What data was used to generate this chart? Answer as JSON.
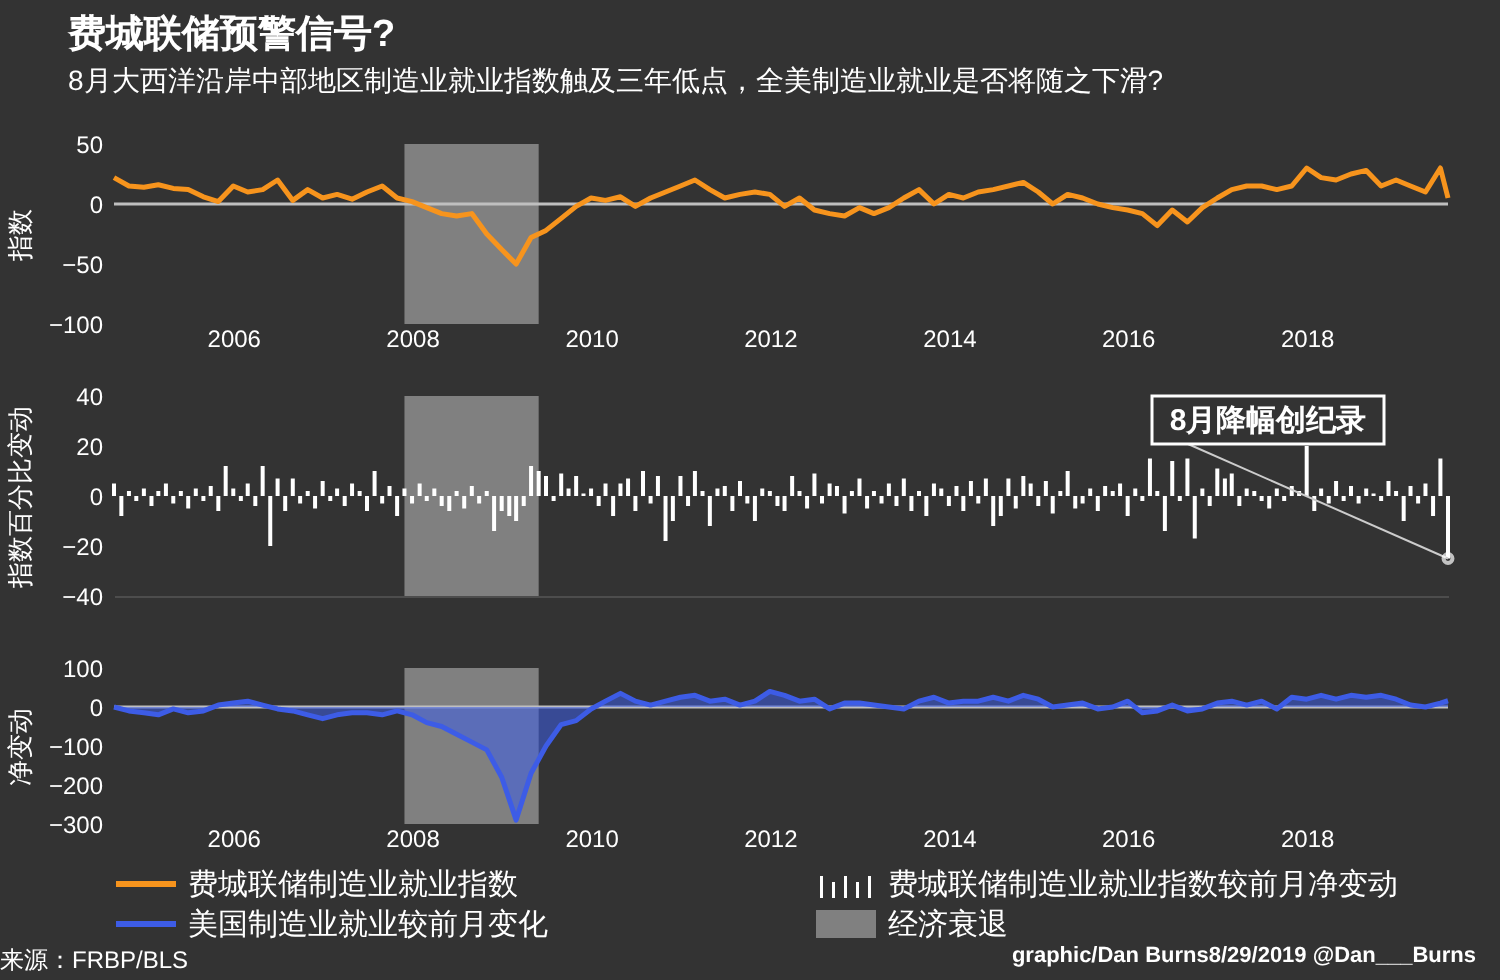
{
  "chart_data": [
    {
      "type": "line",
      "title": "费城联储预警信号?",
      "subtitle": "8月大西洋沿岸中部地区制造业就业指数触及三年低点，全美制造业就业是否将随之下滑?",
      "ylabel": "指数",
      "legend": "bottom",
      "x": [
        "2004-09",
        "2004-11",
        "2005-01",
        "2005-03",
        "2005-05",
        "2005-07",
        "2005-09",
        "2005-11",
        "2006-01",
        "2006-03",
        "2006-05",
        "2006-07",
        "2006-09",
        "2006-11",
        "2007-01",
        "2007-03",
        "2007-05",
        "2007-07",
        "2007-09",
        "2007-11",
        "2008-01",
        "2008-03",
        "2008-05",
        "2008-07",
        "2008-09",
        "2008-11",
        "2009-01",
        "2009-03",
        "2009-05",
        "2009-07",
        "2009-09",
        "2009-11",
        "2010-01",
        "2010-03",
        "2010-05",
        "2010-07",
        "2010-09",
        "2010-11",
        "2011-01",
        "2011-03",
        "2011-05",
        "2011-07",
        "2011-09",
        "2011-11",
        "2012-01",
        "2012-03",
        "2012-05",
        "2012-07",
        "2012-09",
        "2012-11",
        "2013-01",
        "2013-03",
        "2013-05",
        "2013-07",
        "2013-09",
        "2013-11",
        "2014-01",
        "2014-03",
        "2014-05",
        "2014-07",
        "2014-09",
        "2014-11",
        "2015-01",
        "2015-03",
        "2015-05",
        "2015-07",
        "2015-09",
        "2015-11",
        "2016-01",
        "2016-03",
        "2016-05",
        "2016-07",
        "2016-09",
        "2016-11",
        "2017-01",
        "2017-03",
        "2017-05",
        "2017-07",
        "2017-09",
        "2017-11",
        "2018-01",
        "2018-03",
        "2018-05",
        "2018-07",
        "2018-09",
        "2018-11",
        "2019-01",
        "2019-03",
        "2019-05",
        "2019-07",
        "2019-08"
      ],
      "series": [
        {
          "name": "费城联储制造业就业指数",
          "color": "#f7941d",
          "values": [
            22,
            15,
            14,
            16,
            13,
            12,
            6,
            2,
            15,
            10,
            12,
            20,
            3,
            12,
            5,
            8,
            4,
            10,
            15,
            5,
            2,
            -3,
            -8,
            -10,
            -8,
            -25,
            -38,
            -50,
            -28,
            -22,
            -12,
            -2,
            5,
            3,
            6,
            -2,
            5,
            10,
            15,
            20,
            12,
            5,
            8,
            10,
            8,
            -2,
            5,
            -5,
            -8,
            -10,
            -3,
            -8,
            -3,
            5,
            12,
            0,
            8,
            5,
            10,
            12,
            15,
            18,
            10,
            0,
            8,
            5,
            0,
            -3,
            -5,
            -8,
            -18,
            -5,
            -15,
            -3,
            5,
            12,
            15,
            15,
            12,
            15,
            30,
            22,
            20,
            25,
            28,
            15,
            20,
            15,
            10,
            30,
            5
          ]
        }
      ],
      "xlim": [
        "2004-09",
        "2019-08"
      ],
      "xticks": [
        "2006",
        "2008",
        "2010",
        "2012",
        "2014",
        "2016",
        "2018"
      ],
      "ylim": [
        -100,
        50
      ],
      "yticks": [
        -100,
        -50,
        0,
        50
      ],
      "ref_lines": [
        {
          "axis": "y",
          "value": 0,
          "color": "#bfbfbf"
        }
      ],
      "bands": [
        {
          "axis": "x",
          "from": "2007-12",
          "to": "2009-06",
          "label": "经济衰退",
          "color": "#808080"
        }
      ]
    },
    {
      "type": "bar",
      "ylabel": "指数百分比变动",
      "legend": "bottom",
      "tick_labels": "y",
      "x": [
        "2004-09",
        "2004-10",
        "2004-11",
        "2004-12",
        "2005-01",
        "2005-02",
        "2005-03",
        "2005-04",
        "2005-05",
        "2005-06",
        "2005-07",
        "2005-08",
        "2005-09",
        "2005-10",
        "2005-11",
        "2005-12",
        "2006-01",
        "2006-02",
        "2006-03",
        "2006-04",
        "2006-05",
        "2006-06",
        "2006-07",
        "2006-08",
        "2006-09",
        "2006-10",
        "2006-11",
        "2006-12",
        "2007-01",
        "2007-02",
        "2007-03",
        "2007-04",
        "2007-05",
        "2007-06",
        "2007-07",
        "2007-08",
        "2007-09",
        "2007-10",
        "2007-11",
        "2007-12",
        "2008-01",
        "2008-02",
        "2008-03",
        "2008-04",
        "2008-05",
        "2008-06",
        "2008-07",
        "2008-08",
        "2008-09",
        "2008-10",
        "2008-11",
        "2008-12",
        "2009-01",
        "2009-02",
        "2009-03",
        "2009-04",
        "2009-05",
        "2009-06",
        "2009-07",
        "2009-08",
        "2009-09",
        "2009-10",
        "2009-11",
        "2009-12",
        "2010-01",
        "2010-02",
        "2010-03",
        "2010-04",
        "2010-05",
        "2010-06",
        "2010-07",
        "2010-08",
        "2010-09",
        "2010-10",
        "2010-11",
        "2010-12",
        "2011-01",
        "2011-02",
        "2011-03",
        "2011-04",
        "2011-05",
        "2011-06",
        "2011-07",
        "2011-08",
        "2011-09",
        "2011-10",
        "2011-11",
        "2011-12",
        "2012-01",
        "2012-02",
        "2012-03",
        "2012-04",
        "2012-05",
        "2012-06",
        "2012-07",
        "2012-08",
        "2012-09",
        "2012-10",
        "2012-11",
        "2012-12",
        "2013-01",
        "2013-02",
        "2013-03",
        "2013-04",
        "2013-05",
        "2013-06",
        "2013-07",
        "2013-08",
        "2013-09",
        "2013-10",
        "2013-11",
        "2013-12",
        "2014-01",
        "2014-02",
        "2014-03",
        "2014-04",
        "2014-05",
        "2014-06",
        "2014-07",
        "2014-08",
        "2014-09",
        "2014-10",
        "2014-11",
        "2014-12",
        "2015-01",
        "2015-02",
        "2015-03",
        "2015-04",
        "2015-05",
        "2015-06",
        "2015-07",
        "2015-08",
        "2015-09",
        "2015-10",
        "2015-11",
        "2015-12",
        "2016-01",
        "2016-02",
        "2016-03",
        "2016-04",
        "2016-05",
        "2016-06",
        "2016-07",
        "2016-08",
        "2016-09",
        "2016-10",
        "2016-11",
        "2016-12",
        "2017-01",
        "2017-02",
        "2017-03",
        "2017-04",
        "2017-05",
        "2017-06",
        "2017-07",
        "2017-08",
        "2017-09",
        "2017-10",
        "2017-11",
        "2017-12",
        "2018-01",
        "2018-02",
        "2018-03",
        "2018-04",
        "2018-05",
        "2018-06",
        "2018-07",
        "2018-08",
        "2018-09",
        "2018-10",
        "2018-11",
        "2018-12",
        "2019-01",
        "2019-02",
        "2019-03",
        "2019-04",
        "2019-05",
        "2019-06",
        "2019-07",
        "2019-08"
      ],
      "series": [
        {
          "name": "费城联储制造业就业指数较前月净变动",
          "color": "#ffffff",
          "values": [
            5,
            -8,
            2,
            -2,
            3,
            -4,
            2,
            5,
            -3,
            2,
            -5,
            3,
            -2,
            4,
            -6,
            12,
            3,
            -2,
            5,
            -4,
            12,
            -20,
            7,
            -6,
            7,
            -3,
            2,
            -5,
            6,
            -2,
            3,
            -4,
            5,
            2,
            -6,
            10,
            -3,
            4,
            -8,
            3,
            -3,
            5,
            -2,
            3,
            -4,
            -6,
            2,
            -5,
            4,
            -3,
            2,
            -14,
            -6,
            -8,
            -10,
            -4,
            12,
            10,
            8,
            -2,
            9,
            3,
            8,
            1,
            3,
            -4,
            5,
            -8,
            5,
            7,
            -6,
            10,
            -3,
            8,
            -18,
            -10,
            8,
            -4,
            10,
            2,
            -12,
            3,
            4,
            -6,
            6,
            -3,
            -10,
            3,
            2,
            -4,
            -6,
            8,
            2,
            -5,
            9,
            -3,
            5,
            4,
            -7,
            2,
            7,
            -5,
            2,
            -3,
            5,
            -4,
            7,
            -6,
            2,
            -8,
            5,
            3,
            -4,
            4,
            -6,
            6,
            -3,
            7,
            -12,
            -8,
            7,
            -5,
            8,
            5,
            -4,
            6,
            -7,
            2,
            10,
            -5,
            -3,
            3,
            -6,
            4,
            2,
            5,
            -8,
            3,
            -2,
            15,
            2,
            -14,
            14,
            -2,
            15,
            -17,
            3,
            -4,
            11,
            7,
            9,
            -4,
            3,
            2,
            -2,
            -5,
            3,
            -2,
            4,
            2,
            20,
            -6,
            3,
            -3,
            6,
            -2,
            4,
            -3,
            3,
            1,
            -2,
            6,
            2,
            -10,
            4,
            -3,
            5,
            -8,
            15,
            -25
          ]
        }
      ],
      "xlim": [
        "2004-09",
        "2019-08"
      ],
      "xticks": [
        "2006",
        "2008",
        "2010",
        "2012",
        "2014",
        "2016",
        "2018"
      ],
      "ylim": [
        -40,
        40
      ],
      "yticks": [
        -40,
        -20,
        0,
        20,
        40
      ],
      "bands": [
        {
          "axis": "x",
          "from": "2007-12",
          "to": "2009-06",
          "color": "#808080"
        }
      ],
      "annotations": [
        {
          "text": "8月降幅创纪录",
          "x": "2019-08",
          "y": -25
        }
      ]
    },
    {
      "type": "area",
      "ylabel": "净变动",
      "legend": "bottom",
      "x": [
        "2004-09",
        "2004-11",
        "2005-01",
        "2005-03",
        "2005-05",
        "2005-07",
        "2005-09",
        "2005-11",
        "2006-01",
        "2006-03",
        "2006-05",
        "2006-07",
        "2006-09",
        "2006-11",
        "2007-01",
        "2007-03",
        "2007-05",
        "2007-07",
        "2007-09",
        "2007-11",
        "2008-01",
        "2008-03",
        "2008-05",
        "2008-07",
        "2008-09",
        "2008-11",
        "2009-01",
        "2009-03",
        "2009-05",
        "2009-07",
        "2009-09",
        "2009-11",
        "2010-01",
        "2010-03",
        "2010-05",
        "2010-07",
        "2010-09",
        "2010-11",
        "2011-01",
        "2011-03",
        "2011-05",
        "2011-07",
        "2011-09",
        "2011-11",
        "2012-01",
        "2012-03",
        "2012-05",
        "2012-07",
        "2012-09",
        "2012-11",
        "2013-01",
        "2013-03",
        "2013-05",
        "2013-07",
        "2013-09",
        "2013-11",
        "2014-01",
        "2014-03",
        "2014-05",
        "2014-07",
        "2014-09",
        "2014-11",
        "2015-01",
        "2015-03",
        "2015-05",
        "2015-07",
        "2015-09",
        "2015-11",
        "2016-01",
        "2016-03",
        "2016-05",
        "2016-07",
        "2016-09",
        "2016-11",
        "2017-01",
        "2017-03",
        "2017-05",
        "2017-07",
        "2017-09",
        "2017-11",
        "2018-01",
        "2018-03",
        "2018-05",
        "2018-07",
        "2018-09",
        "2018-11",
        "2019-01",
        "2019-03",
        "2019-05",
        "2019-07",
        "2019-08"
      ],
      "series": [
        {
          "name": "美国制造业就业较前月变化",
          "color": "#3d5ce6",
          "values": [
            0,
            -10,
            -15,
            -20,
            -5,
            -15,
            -10,
            5,
            10,
            15,
            5,
            -5,
            -10,
            -20,
            -30,
            -20,
            -15,
            -15,
            -20,
            -10,
            -20,
            -40,
            -50,
            -70,
            -90,
            -110,
            -180,
            -290,
            -170,
            -100,
            -45,
            -35,
            -5,
            15,
            35,
            15,
            5,
            15,
            25,
            30,
            15,
            20,
            5,
            15,
            40,
            30,
            15,
            20,
            -5,
            10,
            10,
            5,
            0,
            -5,
            15,
            25,
            10,
            15,
            15,
            25,
            15,
            30,
            20,
            0,
            5,
            10,
            -5,
            0,
            15,
            -15,
            -10,
            5,
            -10,
            -5,
            10,
            15,
            5,
            15,
            -5,
            25,
            20,
            30,
            20,
            30,
            25,
            30,
            20,
            5,
            0,
            10,
            16
          ]
        }
      ],
      "xlim": [
        "2004-09",
        "2019-08"
      ],
      "xticks": [
        "2006",
        "2008",
        "2010",
        "2012",
        "2014",
        "2016",
        "2018"
      ],
      "ylim": [
        -300,
        100
      ],
      "yticks": [
        -300,
        -200,
        -100,
        0,
        100
      ],
      "ref_lines": [
        {
          "axis": "y",
          "value": 0,
          "color": "#bfbfbf"
        }
      ],
      "bands": [
        {
          "axis": "x",
          "from": "2007-12",
          "to": "2009-06",
          "color": "#808080"
        }
      ],
      "annotations": [
        "来源：FRBP/BLS",
        "graphic/Dan Burns8/29/2019 @Dan___Burns"
      ]
    }
  ]
}
